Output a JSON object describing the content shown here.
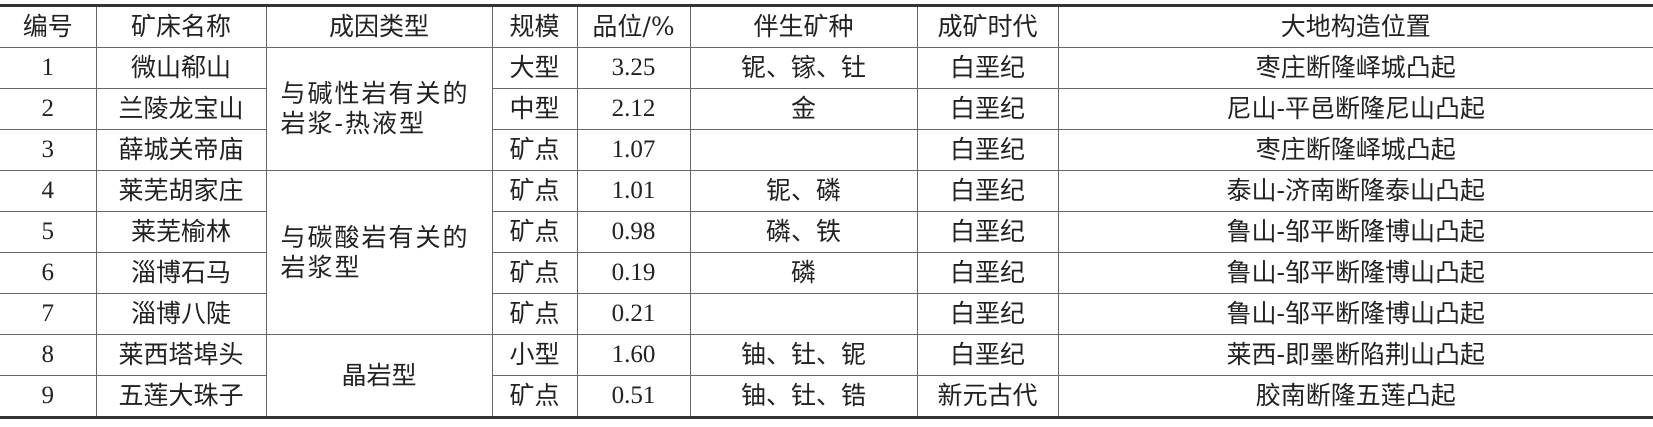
{
  "headers": [
    "编号",
    "矿床名称",
    "成因类型",
    "规模",
    "品位/%",
    "伴生矿种",
    "成矿时代",
    "大地构造位置"
  ],
  "genesis_groups": [
    {
      "label": "与碱性岩有关的岩浆-热液型",
      "rows": 3
    },
    {
      "label": "与碳酸岩有关的岩浆型",
      "rows": 4
    },
    {
      "label": "晶岩型",
      "rows": 2
    }
  ],
  "rows": [
    {
      "no": "1",
      "name": "微山郗山",
      "scale": "大型",
      "grade": "3.25",
      "assoc": "铌、镓、钍",
      "age": "白垩纪",
      "tectonic": "枣庄断隆峄城凸起"
    },
    {
      "no": "2",
      "name": "兰陵龙宝山",
      "scale": "中型",
      "grade": "2.12",
      "assoc": "金",
      "age": "白垩纪",
      "tectonic": "尼山-平邑断隆尼山凸起"
    },
    {
      "no": "3",
      "name": "薛城关帝庙",
      "scale": "矿点",
      "grade": "1.07",
      "assoc": "",
      "age": "白垩纪",
      "tectonic": "枣庄断隆峄城凸起"
    },
    {
      "no": "4",
      "name": "莱芜胡家庄",
      "scale": "矿点",
      "grade": "1.01",
      "assoc": "铌、磷",
      "age": "白垩纪",
      "tectonic": "泰山-济南断隆泰山凸起"
    },
    {
      "no": "5",
      "name": "莱芜榆林",
      "scale": "矿点",
      "grade": "0.98",
      "assoc": "磷、铁",
      "age": "白垩纪",
      "tectonic": "鲁山-邹平断隆博山凸起"
    },
    {
      "no": "6",
      "name": "淄博石马",
      "scale": "矿点",
      "grade": "0.19",
      "assoc": "磷",
      "age": "白垩纪",
      "tectonic": "鲁山-邹平断隆博山凸起"
    },
    {
      "no": "7",
      "name": "淄博八陡",
      "scale": "矿点",
      "grade": "0.21",
      "assoc": "",
      "age": "白垩纪",
      "tectonic": "鲁山-邹平断隆博山凸起"
    },
    {
      "no": "8",
      "name": "莱西塔埠头",
      "scale": "小型",
      "grade": "1.60",
      "assoc": "铀、钍、铌",
      "age": "白垩纪",
      "tectonic": "莱西-即墨断陷荆山凸起"
    },
    {
      "no": "9",
      "name": "五莲大珠子",
      "scale": "矿点",
      "grade": "0.51",
      "assoc": "铀、钍、锆",
      "age": "新元古代",
      "tectonic": "胶南断隆五莲凸起"
    }
  ]
}
